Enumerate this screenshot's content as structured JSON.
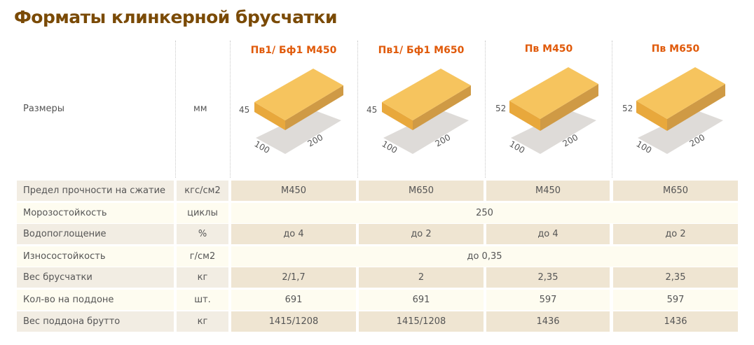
{
  "title": "Форматы клинкерной брусчатки",
  "size_row": {
    "label": "Размеры",
    "unit": "мм"
  },
  "colors": {
    "title": "#7a4a06",
    "heading": "#e05a0a",
    "brick_top": "#f6c45e",
    "brick_side": "#d9a043"
  },
  "products": [
    {
      "name": "Пв1/ Бф1 М450",
      "height": "45",
      "width": "100",
      "length": "200"
    },
    {
      "name": "Пв1/ Бф1 М650",
      "height": "45",
      "width": "100",
      "length": "200"
    },
    {
      "name": "Пв М450",
      "height": "52",
      "width": "100",
      "length": "200"
    },
    {
      "name": "Пв М650",
      "height": "52",
      "width": "100",
      "length": "200"
    }
  ],
  "rows": [
    {
      "label": "Предел прочности на сжатие",
      "unit": "кгс/см2",
      "values": [
        "М450",
        "М650",
        "М450",
        "М650"
      ]
    },
    {
      "label": "Морозостойкость",
      "unit": "циклы",
      "values": [
        "250"
      ]
    },
    {
      "label": "Водопоглощение",
      "unit": "%",
      "values": [
        "до 4",
        "до 2",
        "до 4",
        "до 2"
      ]
    },
    {
      "label": "Износостойкость",
      "unit": "г/см2",
      "values": [
        "до 0,35"
      ]
    },
    {
      "label": "Вес брусчатки",
      "unit": "кг",
      "values": [
        "2/1,7",
        "2",
        "2,35",
        "2,35"
      ]
    },
    {
      "label": "Кол-во на поддоне",
      "unit": "шт.",
      "values": [
        "691",
        "691",
        "597",
        "597"
      ]
    },
    {
      "label": "Вес поддона брутто",
      "unit": "кг",
      "values": [
        "1415/1208",
        "1415/1208",
        "1436",
        "1436"
      ]
    }
  ]
}
